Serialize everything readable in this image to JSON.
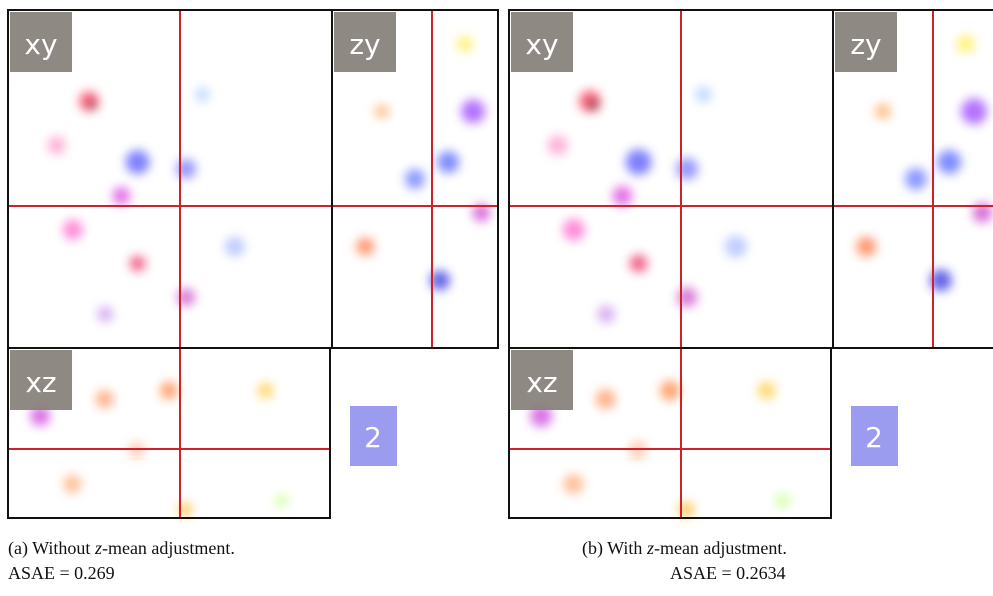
{
  "panels": [
    {
      "views": {
        "xy": "xy",
        "zy": "zy",
        "xz": "xz"
      },
      "badge": "2",
      "caption": {
        "prefix": "(a) Without ",
        "variable": "z",
        "suffix": "-mean adjustment."
      },
      "metric": "ASAE = 0.269"
    },
    {
      "views": {
        "xy": "xy",
        "zy": "zy",
        "xz": "xz"
      },
      "badge": "2",
      "caption": {
        "prefix": "(b) With ",
        "variable": "z",
        "suffix": "-mean adjustment."
      },
      "metric": "ASAE = 0.2634"
    }
  ]
}
